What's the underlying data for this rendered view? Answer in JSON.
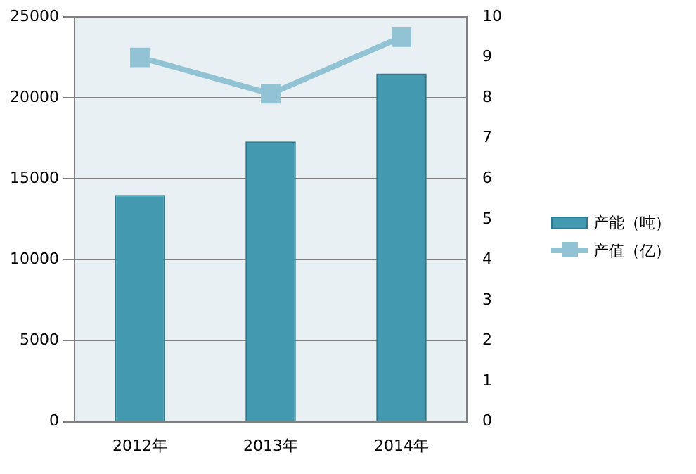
{
  "chart_data": {
    "type": "bar",
    "categories": [
      "2012年",
      "2013年",
      "2014年"
    ],
    "series": [
      {
        "name": "产能（吨）",
        "type": "bar",
        "color": "#4299b0",
        "values": [
          14000,
          17300,
          21500
        ]
      },
      {
        "name": "产值（亿）",
        "type": "line",
        "axis": "y2",
        "color": "#92c3d5",
        "values": [
          9.0,
          8.1,
          9.5
        ]
      }
    ],
    "ylim": [
      0,
      25000
    ],
    "yticks": [
      0,
      5000,
      10000,
      15000,
      20000,
      25000
    ],
    "y2lim": [
      0,
      10
    ],
    "y2ticks": [
      0,
      1,
      2,
      3,
      4,
      5,
      6,
      7,
      8,
      9,
      10
    ],
    "grid": "y",
    "legend": "right",
    "marker": "square"
  }
}
